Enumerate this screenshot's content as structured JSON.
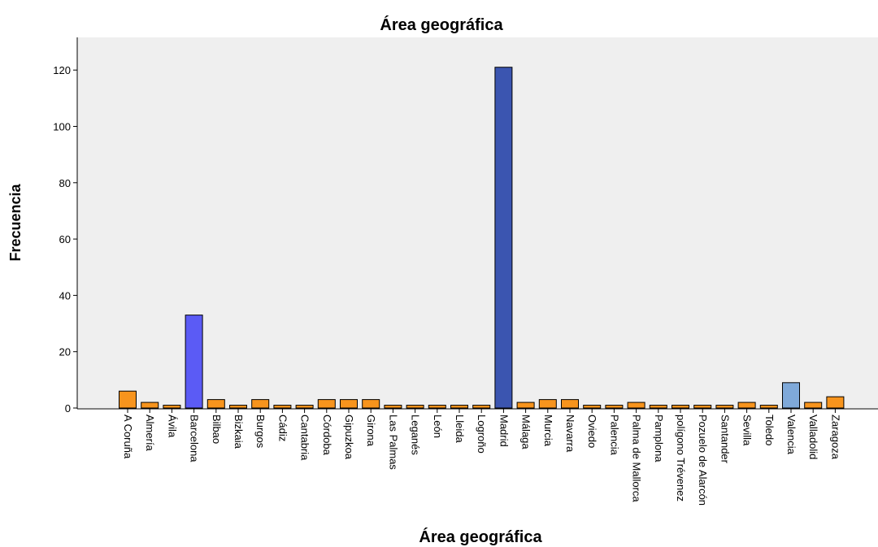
{
  "chart_data": {
    "type": "bar",
    "title": "Área geográfica",
    "xlabel": "Área geográfica",
    "ylabel": "Frecuencia",
    "ylim": [
      0,
      130
    ],
    "yticks": [
      0,
      20,
      40,
      60,
      80,
      100,
      120
    ],
    "grid": false,
    "categories": [
      "A Coruña",
      "Almería",
      "Ávila",
      "Barcelona",
      "Bilbao",
      "Bizkaia",
      "Burgos",
      "Cádiz",
      "Cantabria",
      "Córdoba",
      "Gipuzkoa",
      "Girona",
      "Las Palmas",
      "Leganés",
      "León",
      "Lleida",
      "Logroño",
      "Madrid",
      "Málaga",
      "Murcia",
      "Navarra",
      "Oviedo",
      "Palencia",
      "Palma de Mallorca",
      "Pamplona",
      "polígono Trévenez",
      "Pozuelo de Alarcón",
      "Santander",
      "Sevilla",
      "Toledo",
      "Valencia",
      "Valladolid",
      "Zaragoza"
    ],
    "values": [
      6,
      2,
      1,
      33,
      3,
      1,
      3,
      1,
      1,
      3,
      3,
      3,
      1,
      1,
      1,
      1,
      1,
      121,
      2,
      3,
      3,
      1,
      1,
      2,
      1,
      1,
      1,
      1,
      2,
      1,
      9,
      2,
      4
    ],
    "colors": {
      "default": "#f7941d",
      "Barcelona": "#5b5bf5",
      "Madrid": "#3b55b0",
      "Valencia": "#7fa9d9",
      "plot_background": "#efefef"
    }
  }
}
